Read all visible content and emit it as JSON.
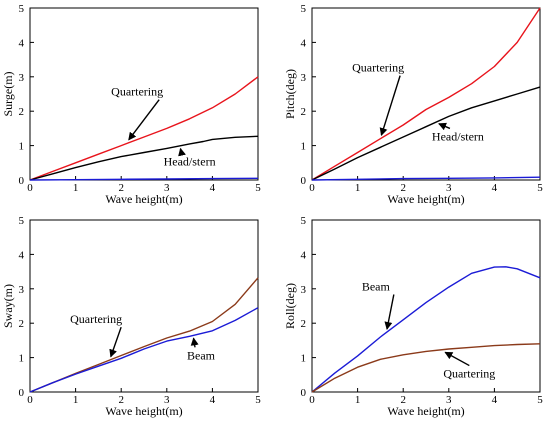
{
  "chart_data": [
    {
      "type": "line",
      "xlabel": "Wave height(m)",
      "ylabel": "Surge(m)",
      "xlim": [
        0,
        5
      ],
      "ylim": [
        0,
        5
      ],
      "xticks": [
        "0",
        "1",
        "2",
        "3",
        "4",
        "5"
      ],
      "yticks": [
        "0",
        "1",
        "2",
        "3",
        "4",
        "5"
      ],
      "grid": false,
      "series": [
        {
          "name": "Quartering",
          "color": "#e8141c",
          "x": [
            0,
            0.5,
            1,
            1.5,
            2,
            2.5,
            3,
            3.5,
            4,
            4.5,
            5
          ],
          "y": [
            0,
            0.25,
            0.5,
            0.75,
            1.0,
            1.25,
            1.5,
            1.78,
            2.1,
            2.5,
            3.0
          ]
        },
        {
          "name": "Head/stern",
          "color": "#000000",
          "x": [
            0,
            0.5,
            1,
            1.5,
            2,
            2.5,
            3,
            3.5,
            3.8,
            4,
            4.5,
            5
          ],
          "y": [
            0,
            0.18,
            0.36,
            0.53,
            0.68,
            0.8,
            0.92,
            1.05,
            1.12,
            1.18,
            1.24,
            1.27
          ]
        },
        {
          "name": "",
          "color": "#1b1bd6",
          "x": [
            0,
            1,
            2,
            3,
            4,
            5
          ],
          "y": [
            0,
            0.01,
            0.02,
            0.03,
            0.04,
            0.05
          ]
        }
      ],
      "annotations": [
        {
          "text": "Quartering",
          "x": 2.35,
          "y": 2.45
        },
        {
          "text": "Head/stern",
          "x": 3.5,
          "y": 0.42
        }
      ]
    },
    {
      "type": "line",
      "xlabel": "Wave height(m)",
      "ylabel": "Pitch(deg)",
      "xlim": [
        0,
        5
      ],
      "ylim": [
        0,
        5
      ],
      "xticks": [
        "0",
        "1",
        "2",
        "3",
        "4",
        "5"
      ],
      "yticks": [
        "0",
        "1",
        "2",
        "3",
        "4",
        "5"
      ],
      "grid": false,
      "series": [
        {
          "name": "Quartering",
          "color": "#e8141c",
          "x": [
            0,
            0.5,
            1,
            1.5,
            2,
            2.5,
            3,
            3.5,
            4,
            4.5,
            5
          ],
          "y": [
            0,
            0.4,
            0.8,
            1.2,
            1.6,
            2.05,
            2.4,
            2.8,
            3.3,
            4.0,
            5.0
          ]
        },
        {
          "name": "Head/stern",
          "color": "#000000",
          "x": [
            0,
            0.5,
            1,
            1.5,
            2,
            2.5,
            3,
            3.5,
            4,
            4.5,
            5
          ],
          "y": [
            0,
            0.32,
            0.65,
            0.95,
            1.25,
            1.55,
            1.85,
            2.1,
            2.3,
            2.5,
            2.7
          ]
        },
        {
          "name": "",
          "color": "#1b1bd6",
          "x": [
            0,
            1,
            2,
            3,
            4,
            5
          ],
          "y": [
            0,
            0.02,
            0.04,
            0.05,
            0.06,
            0.08
          ]
        }
      ],
      "annotations": [
        {
          "text": "Quartering",
          "x": 1.45,
          "y": 3.15
        },
        {
          "text": "Head/stern",
          "x": 3.2,
          "y": 1.15
        }
      ]
    },
    {
      "type": "line",
      "xlabel": "Wave height(m)",
      "ylabel": "Sway(m)",
      "xlim": [
        0,
        5
      ],
      "ylim": [
        0,
        5
      ],
      "xticks": [
        "0",
        "1",
        "2",
        "3",
        "4",
        "5"
      ],
      "yticks": [
        "0",
        "1",
        "2",
        "3",
        "4",
        "5"
      ],
      "grid": false,
      "series": [
        {
          "name": "Quartering",
          "color": "#8b3a1a",
          "x": [
            0,
            0.5,
            1,
            1.5,
            2,
            2.5,
            3,
            3.5,
            4,
            4.5,
            5
          ],
          "y": [
            0,
            0.27,
            0.54,
            0.8,
            1.06,
            1.32,
            1.57,
            1.77,
            2.05,
            2.55,
            3.32
          ]
        },
        {
          "name": "Beam",
          "color": "#1b1bd6",
          "x": [
            0,
            0.5,
            1,
            1.5,
            2,
            2.5,
            3,
            3.5,
            4,
            4.5,
            5
          ],
          "y": [
            0,
            0.27,
            0.52,
            0.75,
            0.98,
            1.25,
            1.48,
            1.62,
            1.78,
            2.08,
            2.45
          ]
        }
      ],
      "annotations": [
        {
          "text": "Quartering",
          "x": 1.45,
          "y": 2.0
        },
        {
          "text": "Beam",
          "x": 3.75,
          "y": 0.95
        }
      ]
    },
    {
      "type": "line",
      "xlabel": "Wave height(m)",
      "ylabel": "Roll(deg)",
      "xlim": [
        0,
        5
      ],
      "ylim": [
        0,
        5
      ],
      "xticks": [
        "0",
        "1",
        "2",
        "3",
        "4",
        "5"
      ],
      "yticks": [
        "0",
        "1",
        "2",
        "3",
        "4",
        "5"
      ],
      "grid": false,
      "series": [
        {
          "name": "Beam",
          "color": "#1b1bd6",
          "x": [
            0,
            0.5,
            1,
            1.5,
            2,
            2.5,
            3,
            3.5,
            4,
            4.25,
            4.5,
            5
          ],
          "y": [
            0,
            0.55,
            1.05,
            1.6,
            2.1,
            2.6,
            3.05,
            3.45,
            3.63,
            3.64,
            3.58,
            3.32
          ]
        },
        {
          "name": "Quartering",
          "color": "#8b3a1a",
          "x": [
            0,
            0.5,
            1,
            1.5,
            2,
            2.5,
            3,
            3.5,
            4,
            4.5,
            5
          ],
          "y": [
            0,
            0.4,
            0.72,
            0.95,
            1.08,
            1.18,
            1.25,
            1.3,
            1.35,
            1.38,
            1.4
          ]
        }
      ],
      "annotations": [
        {
          "text": "Beam",
          "x": 1.4,
          "y": 2.95
        },
        {
          "text": "Quartering",
          "x": 3.45,
          "y": 0.42
        }
      ]
    }
  ]
}
